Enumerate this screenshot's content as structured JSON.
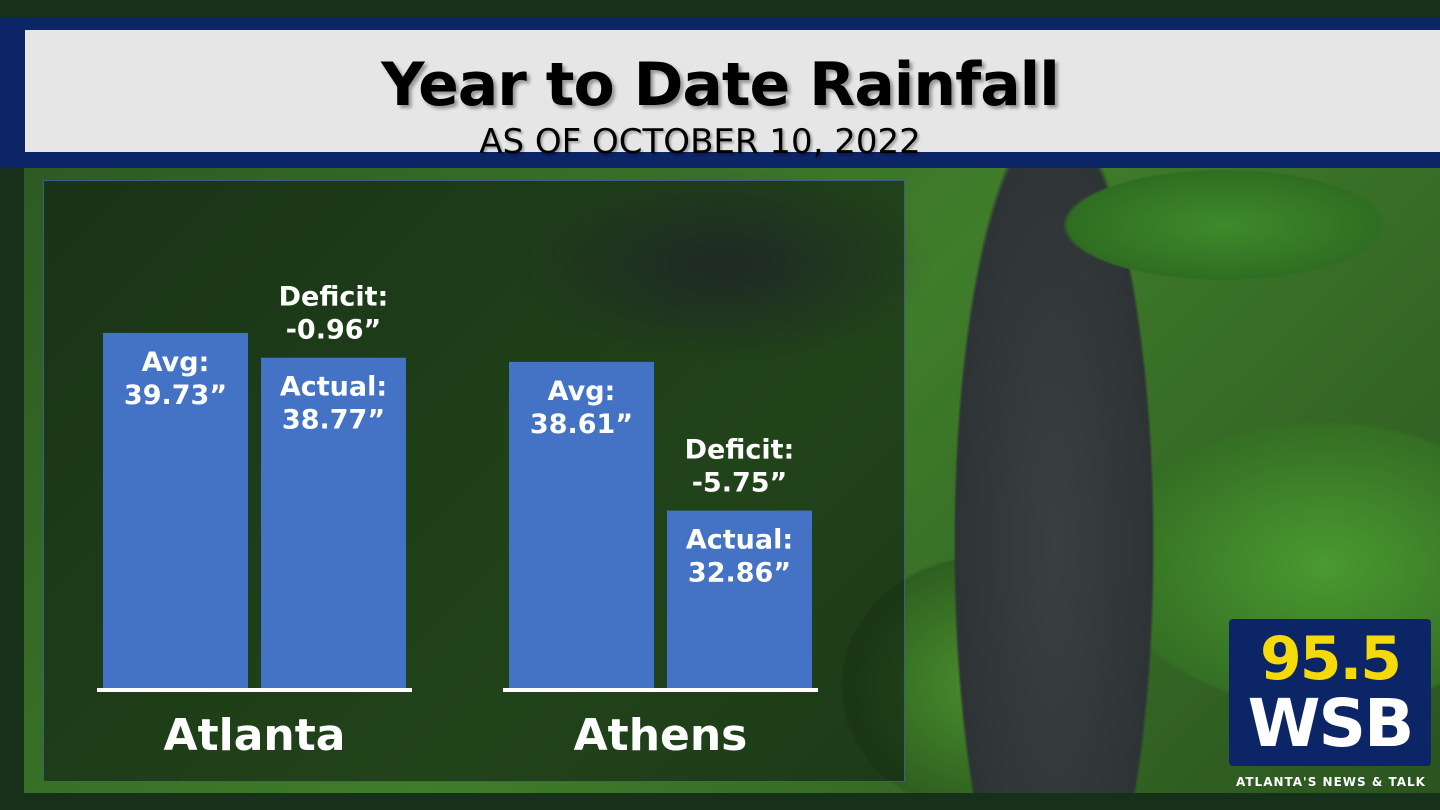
{
  "header": {
    "title": "Year to Date Rainfall",
    "subtitle": "AS OF OCTOBER 10, 2022"
  },
  "logo": {
    "frequency": "95.5",
    "station": "WSB",
    "tagline": "ATLANTA'S NEWS & TALK"
  },
  "colors": {
    "bar": "#4472c4",
    "band": "#0b2566",
    "logo_yellow": "#f5d90a"
  },
  "chart_data": {
    "type": "bar",
    "title": "Year to Date Rainfall",
    "subtitle": "AS OF OCTOBER 10, 2022",
    "categories": [
      "Atlanta",
      "Athens"
    ],
    "unit": "inches",
    "series": [
      {
        "name": "Avg",
        "values": [
          39.73,
          38.61
        ],
        "labels": [
          "Avg:\n39.73”",
          "Avg:\n38.61”"
        ]
      },
      {
        "name": "Actual",
        "values": [
          38.77,
          32.86
        ],
        "labels": [
          "Actual:\n38.77”",
          "Actual:\n32.86”"
        ]
      }
    ],
    "annotations": [
      {
        "category": "Atlanta",
        "text": "Deficit:\n-0.96”",
        "value": -0.96
      },
      {
        "category": "Athens",
        "text": "Deficit:\n-5.75”",
        "value": -5.75
      }
    ],
    "grid": false,
    "axes_visible": false
  }
}
